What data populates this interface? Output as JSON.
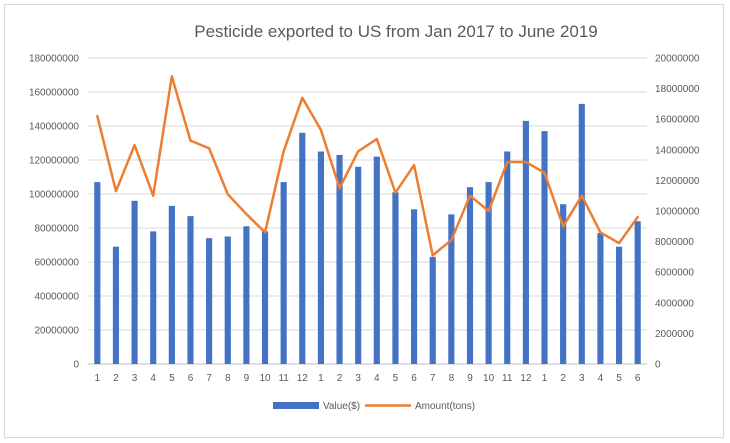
{
  "chart_data": {
    "type": "bar",
    "title": "Pesticide exported to US from Jan 2017 to June 2019",
    "xlabel": "",
    "ylabel": "",
    "categories": [
      "1",
      "2",
      "3",
      "4",
      "5",
      "6",
      "7",
      "8",
      "9",
      "10",
      "11",
      "12",
      "1",
      "2",
      "3",
      "4",
      "5",
      "6",
      "7",
      "8",
      "9",
      "10",
      "11",
      "12",
      "1",
      "2",
      "3",
      "4",
      "5",
      "6"
    ],
    "y_left_ticks": [
      "0",
      "20000000",
      "40000000",
      "60000000",
      "80000000",
      "100000000",
      "120000000",
      "140000000",
      "160000000",
      "180000000"
    ],
    "y_right_ticks": [
      "0",
      "2000000",
      "4000000",
      "6000000",
      "8000000",
      "10000000",
      "12000000",
      "14000000",
      "16000000",
      "18000000",
      "20000000"
    ],
    "ylim_left": [
      0,
      180000000
    ],
    "ylim_right": [
      0,
      20000000
    ],
    "grid": true,
    "legend_position": "bottom",
    "series": [
      {
        "name": "Value($)",
        "type": "bar",
        "axis": "left",
        "color": "#4472c4",
        "values": [
          107000000,
          69000000,
          96000000,
          78000000,
          93000000,
          87000000,
          74000000,
          75000000,
          81000000,
          78000000,
          107000000,
          136000000,
          125000000,
          123000000,
          116000000,
          122000000,
          101000000,
          91000000,
          63000000,
          88000000,
          104000000,
          107000000,
          125000000,
          143000000,
          137000000,
          94000000,
          153000000,
          77000000,
          69000000,
          84000000
        ]
      },
      {
        "name": "Amount(tons)",
        "type": "line",
        "axis": "right",
        "color": "#ed7d31",
        "values": [
          16200000,
          11300000,
          14300000,
          11000000,
          18800000,
          14600000,
          14100000,
          11100000,
          9800000,
          8600000,
          13900000,
          17400000,
          15300000,
          11500000,
          13900000,
          14700000,
          11200000,
          13000000,
          7100000,
          8100000,
          11000000,
          10000000,
          13200000,
          13200000,
          12500000,
          9000000,
          11000000,
          8600000,
          7900000,
          9600000
        ]
      }
    ]
  }
}
